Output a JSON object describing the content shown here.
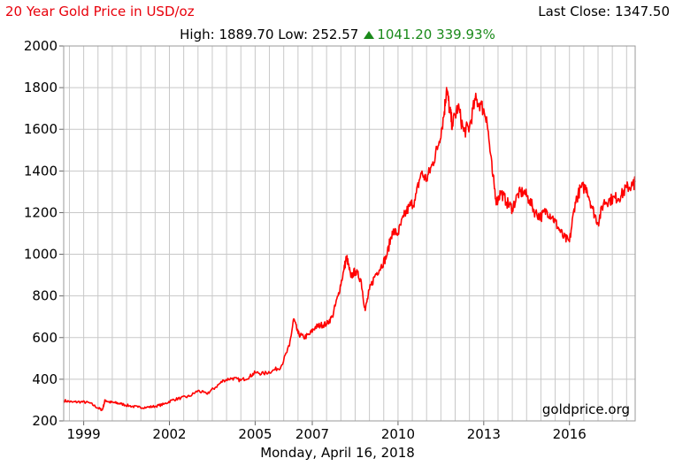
{
  "header": {
    "title": "20 Year Gold Price in USD/oz",
    "last_close": "Last Close: 1347.50",
    "high_low": "High: 1889.70 Low: 252.57",
    "change": "1041.20 339.93%",
    "change_icon": "up-triangle-icon"
  },
  "colors": {
    "line": "#ff0000",
    "title": "#e8000b",
    "gain": "#1a8a1a",
    "grid": "#c8c8c8"
  },
  "watermark": "goldprice.org",
  "chart_data": {
    "type": "line",
    "title": "20 Year Gold Price in USD/oz",
    "xlabel": "Monday, April 16, 2018",
    "ylabel": "",
    "ylim": [
      200,
      2000
    ],
    "xlim": [
      1998.3,
      2018.3
    ],
    "y_ticks": [
      200,
      400,
      600,
      800,
      1000,
      1200,
      1400,
      1600,
      1800,
      2000
    ],
    "x_ticks": [
      {
        "label": "1999",
        "value": 1999.0
      },
      {
        "label": "2002",
        "value": 2002.0
      },
      {
        "label": "2005",
        "value": 2005.0
      },
      {
        "label": "2007",
        "value": 2007.0
      },
      {
        "label": "2010",
        "value": 2010.0
      },
      {
        "label": "2013",
        "value": 2013.0
      },
      {
        "label": "2016",
        "value": 2016.0
      }
    ],
    "grid": true,
    "series": [
      {
        "x": [
          1998.3,
          1998.6,
          1998.9,
          1999.2,
          1999.5,
          1999.65,
          1999.75,
          1999.9,
          2000.1,
          2000.3,
          2000.6,
          2000.9,
          2001.2,
          2001.5,
          2001.8,
          2002.1,
          2002.4,
          2002.7,
          2003.0,
          2003.3,
          2003.6,
          2003.9,
          2004.2,
          2004.5,
          2004.8,
          2005.0,
          2005.3,
          2005.6,
          2005.9,
          2006.2,
          2006.35,
          2006.5,
          2006.7,
          2006.9,
          2007.1,
          2007.3,
          2007.5,
          2007.7,
          2007.9,
          2008.1,
          2008.2,
          2008.35,
          2008.5,
          2008.7,
          2008.85,
          2009.0,
          2009.2,
          2009.4,
          2009.6,
          2009.8,
          2010.0,
          2010.2,
          2010.4,
          2010.6,
          2010.8,
          2011.0,
          2011.2,
          2011.4,
          2011.6,
          2011.7,
          2011.8,
          2011.9,
          2012.1,
          2012.3,
          2012.5,
          2012.7,
          2012.9,
          2013.1,
          2013.3,
          2013.45,
          2013.6,
          2013.8,
          2014.0,
          2014.2,
          2014.4,
          2014.6,
          2014.8,
          2015.0,
          2015.2,
          2015.4,
          2015.6,
          2015.8,
          2016.0,
          2016.2,
          2016.4,
          2016.6,
          2016.8,
          2017.0,
          2017.2,
          2017.4,
          2017.6,
          2017.8,
          2018.0,
          2018.2,
          2018.3
        ],
        "values": [
          298,
          290,
          292,
          287,
          262,
          252,
          300,
          290,
          287,
          282,
          272,
          266,
          265,
          270,
          280,
          300,
          310,
          318,
          345,
          330,
          360,
          395,
          405,
          395,
          412,
          432,
          427,
          440,
          460,
          560,
          690,
          620,
          600,
          615,
          650,
          660,
          665,
          700,
          800,
          920,
          990,
          890,
          920,
          880,
          730,
          830,
          900,
          940,
          990,
          1110,
          1100,
          1180,
          1230,
          1260,
          1390,
          1360,
          1430,
          1520,
          1660,
          1800,
          1700,
          1620,
          1710,
          1590,
          1610,
          1740,
          1720,
          1660,
          1390,
          1250,
          1300,
          1250,
          1220,
          1290,
          1300,
          1260,
          1200,
          1180,
          1210,
          1180,
          1130,
          1080,
          1060,
          1250,
          1320,
          1320,
          1220,
          1150,
          1250,
          1260,
          1270,
          1280,
          1320,
          1330,
          1347.5
        ]
      }
    ]
  }
}
